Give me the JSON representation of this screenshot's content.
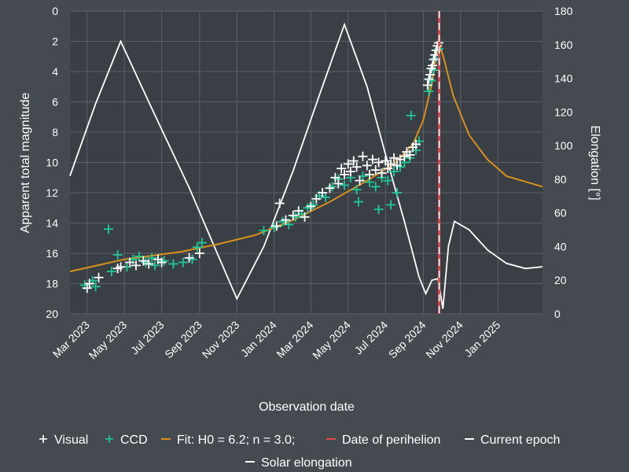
{
  "colors": {
    "background": "#454a50",
    "plot_background": "#3a3f45",
    "grid": "#5a6068",
    "visual": "#ffffff",
    "ccd": "#1fc997",
    "fit": "#d8901c",
    "perihelion": "#e0474c",
    "current_epoch": "#ffffff",
    "elongation": "#ffffff"
  },
  "chart_data": {
    "type": "scatter",
    "xlabel": "Observation date",
    "ylabel_left": "Apparent total magnitude",
    "ylabel_right": "Elongation [°]",
    "ylim_left": [
      20,
      0
    ],
    "ylim_right": [
      0,
      180
    ],
    "xlim": [
      "2023-02-01",
      "2025-03-15"
    ],
    "x_ticks": [
      {
        "date": "2023-03-01",
        "label": "Mar 2023"
      },
      {
        "date": "2023-05-01",
        "label": "May 2023"
      },
      {
        "date": "2023-07-01",
        "label": "Jul 2023"
      },
      {
        "date": "2023-09-01",
        "label": "Sep 2023"
      },
      {
        "date": "2023-11-01",
        "label": "Nov 2023"
      },
      {
        "date": "2024-01-01",
        "label": "Jan 2024"
      },
      {
        "date": "2024-03-01",
        "label": "Mar 2024"
      },
      {
        "date": "2024-05-01",
        "label": "May 2024"
      },
      {
        "date": "2024-07-01",
        "label": "Jul 2024"
      },
      {
        "date": "2024-09-01",
        "label": "Sep 2024"
      },
      {
        "date": "2024-11-01",
        "label": "Nov 2024"
      },
      {
        "date": "2025-01-01",
        "label": "Jan 2025"
      }
    ],
    "y_ticks_left": [
      0,
      2,
      4,
      6,
      8,
      10,
      12,
      14,
      16,
      18,
      20
    ],
    "y_ticks_right": [
      0,
      20,
      40,
      60,
      80,
      100,
      120,
      140,
      160,
      180
    ],
    "grid": true,
    "legend_position": "bottom",
    "legend": [
      {
        "label": "Visual",
        "symbol": "+",
        "color": "#ffffff"
      },
      {
        "label": "CCD",
        "symbol": "+",
        "color": "#1fc997"
      },
      {
        "label": "Fit: H0 = 6.2; n = 3.0;",
        "symbol": "line",
        "color": "#d8901c"
      },
      {
        "label": "Date of perihelion",
        "symbol": "dash",
        "color": "#e0474c"
      },
      {
        "label": "Current epoch",
        "symbol": "line",
        "color": "#ffffff"
      },
      {
        "label": "Solar elongation",
        "symbol": "line",
        "color": "#ffffff"
      }
    ],
    "perihelion_date": "2024-09-27",
    "current_epoch_date": "2024-09-27",
    "fit_curve": [
      {
        "x": "2023-02-01",
        "y": 17.2
      },
      {
        "x": "2023-05-01",
        "y": 16.4
      },
      {
        "x": "2023-08-01",
        "y": 15.9
      },
      {
        "x": "2023-10-01",
        "y": 15.4
      },
      {
        "x": "2023-12-01",
        "y": 14.8
      },
      {
        "x": "2024-02-01",
        "y": 13.8
      },
      {
        "x": "2024-04-01",
        "y": 12.6
      },
      {
        "x": "2024-06-01",
        "y": 11.2
      },
      {
        "x": "2024-07-15",
        "y": 10.1
      },
      {
        "x": "2024-08-15",
        "y": 8.8
      },
      {
        "x": "2024-09-01",
        "y": 7.2
      },
      {
        "x": "2024-09-15",
        "y": 4.8
      },
      {
        "x": "2024-09-24",
        "y": 2.5
      },
      {
        "x": "2024-09-28",
        "y": 2.2
      },
      {
        "x": "2024-10-05",
        "y": 3.2
      },
      {
        "x": "2024-10-20",
        "y": 5.6
      },
      {
        "x": "2024-11-15",
        "y": 8.2
      },
      {
        "x": "2024-12-15",
        "y": 9.8
      },
      {
        "x": "2025-01-15",
        "y": 10.9
      },
      {
        "x": "2025-03-15",
        "y": 11.6
      }
    ],
    "elongation_curve": [
      {
        "x": "2023-02-01",
        "y": 82
      },
      {
        "x": "2023-03-15",
        "y": 125
      },
      {
        "x": "2023-04-25",
        "y": 162
      },
      {
        "x": "2023-06-15",
        "y": 122
      },
      {
        "x": "2023-08-15",
        "y": 75
      },
      {
        "x": "2023-10-01",
        "y": 35
      },
      {
        "x": "2023-11-01",
        "y": 9
      },
      {
        "x": "2023-12-15",
        "y": 40
      },
      {
        "x": "2024-02-01",
        "y": 85
      },
      {
        "x": "2024-03-15",
        "y": 130
      },
      {
        "x": "2024-04-25",
        "y": 172
      },
      {
        "x": "2024-06-01",
        "y": 135
      },
      {
        "x": "2024-07-01",
        "y": 95
      },
      {
        "x": "2024-08-01",
        "y": 55
      },
      {
        "x": "2024-08-25",
        "y": 22
      },
      {
        "x": "2024-09-05",
        "y": 12
      },
      {
        "x": "2024-09-15",
        "y": 20
      },
      {
        "x": "2024-09-25",
        "y": 21
      },
      {
        "x": "2024-10-03",
        "y": 3
      },
      {
        "x": "2024-10-12",
        "y": 40
      },
      {
        "x": "2024-10-22",
        "y": 55
      },
      {
        "x": "2024-11-15",
        "y": 50
      },
      {
        "x": "2024-12-15",
        "y": 38
      },
      {
        "x": "2025-01-15",
        "y": 30
      },
      {
        "x": "2025-02-15",
        "y": 27
      },
      {
        "x": "2025-03-15",
        "y": 28
      }
    ],
    "visual_points": [
      {
        "x": "2023-03-01",
        "y": 18.3
      },
      {
        "x": "2023-03-05",
        "y": 18.0
      },
      {
        "x": "2023-03-20",
        "y": 17.6
      },
      {
        "x": "2023-04-20",
        "y": 17.0
      },
      {
        "x": "2023-04-25",
        "y": 16.9
      },
      {
        "x": "2023-05-10",
        "y": 16.6
      },
      {
        "x": "2023-05-20",
        "y": 16.8
      },
      {
        "x": "2023-06-01",
        "y": 16.5
      },
      {
        "x": "2023-06-10",
        "y": 16.7
      },
      {
        "x": "2023-06-25",
        "y": 16.4
      },
      {
        "x": "2023-07-01",
        "y": 16.6
      },
      {
        "x": "2023-08-15",
        "y": 16.3
      },
      {
        "x": "2023-09-01",
        "y": 16.0
      },
      {
        "x": "2024-01-05",
        "y": 14.2
      },
      {
        "x": "2024-01-10",
        "y": 12.7
      },
      {
        "x": "2024-01-20",
        "y": 13.8
      },
      {
        "x": "2024-02-01",
        "y": 13.5
      },
      {
        "x": "2024-02-10",
        "y": 13.2
      },
      {
        "x": "2024-02-20",
        "y": 13.6
      },
      {
        "x": "2024-03-01",
        "y": 12.9
      },
      {
        "x": "2024-03-10",
        "y": 12.4
      },
      {
        "x": "2024-03-20",
        "y": 12.0
      },
      {
        "x": "2024-04-01",
        "y": 11.7
      },
      {
        "x": "2024-04-10",
        "y": 11.0
      },
      {
        "x": "2024-04-15",
        "y": 11.4
      },
      {
        "x": "2024-04-20",
        "y": 10.4
      },
      {
        "x": "2024-04-25",
        "y": 10.8
      },
      {
        "x": "2024-05-01",
        "y": 10.1
      },
      {
        "x": "2024-05-05",
        "y": 10.6
      },
      {
        "x": "2024-05-10",
        "y": 9.9
      },
      {
        "x": "2024-05-15",
        "y": 10.3
      },
      {
        "x": "2024-05-20",
        "y": 11.2
      },
      {
        "x": "2024-05-25",
        "y": 9.6
      },
      {
        "x": "2024-06-01",
        "y": 10.2
      },
      {
        "x": "2024-06-05",
        "y": 10.8
      },
      {
        "x": "2024-06-10",
        "y": 9.8
      },
      {
        "x": "2024-06-15",
        "y": 10.5
      },
      {
        "x": "2024-06-20",
        "y": 10.0
      },
      {
        "x": "2024-06-25",
        "y": 10.7
      },
      {
        "x": "2024-07-01",
        "y": 9.9
      },
      {
        "x": "2024-07-05",
        "y": 10.4
      },
      {
        "x": "2024-07-10",
        "y": 10.1
      },
      {
        "x": "2024-07-15",
        "y": 9.7
      },
      {
        "x": "2024-07-20",
        "y": 10.2
      },
      {
        "x": "2024-07-25",
        "y": 9.8
      },
      {
        "x": "2024-08-01",
        "y": 9.6
      },
      {
        "x": "2024-08-05",
        "y": 9.3
      },
      {
        "x": "2024-08-10",
        "y": 9.5
      },
      {
        "x": "2024-08-15",
        "y": 9.0
      },
      {
        "x": "2024-08-20",
        "y": 8.8
      },
      {
        "x": "2024-09-08",
        "y": 4.9
      },
      {
        "x": "2024-09-10",
        "y": 4.5
      },
      {
        "x": "2024-09-12",
        "y": 4.2
      },
      {
        "x": "2024-09-14",
        "y": 3.8
      },
      {
        "x": "2024-09-16",
        "y": 3.6
      },
      {
        "x": "2024-09-18",
        "y": 3.2
      },
      {
        "x": "2024-09-20",
        "y": 2.9
      },
      {
        "x": "2024-09-22",
        "y": 2.6
      },
      {
        "x": "2024-09-24",
        "y": 2.3
      },
      {
        "x": "2024-09-26",
        "y": 2.1
      }
    ],
    "ccd_points": [
      {
        "x": "2023-02-25",
        "y": 18.1
      },
      {
        "x": "2023-03-10",
        "y": 17.8
      },
      {
        "x": "2023-03-15",
        "y": 18.2
      },
      {
        "x": "2023-04-05",
        "y": 14.4
      },
      {
        "x": "2023-04-10",
        "y": 17.2
      },
      {
        "x": "2023-04-20",
        "y": 16.1
      },
      {
        "x": "2023-05-05",
        "y": 16.9
      },
      {
        "x": "2023-05-15",
        "y": 16.4
      },
      {
        "x": "2023-05-25",
        "y": 16.2
      },
      {
        "x": "2023-06-05",
        "y": 16.6
      },
      {
        "x": "2023-06-15",
        "y": 16.3
      },
      {
        "x": "2023-06-20",
        "y": 16.8
      },
      {
        "x": "2023-07-05",
        "y": 16.5
      },
      {
        "x": "2023-07-20",
        "y": 16.7
      },
      {
        "x": "2023-08-05",
        "y": 16.6
      },
      {
        "x": "2023-08-20",
        "y": 16.4
      },
      {
        "x": "2023-08-28",
        "y": 15.6
      },
      {
        "x": "2023-09-05",
        "y": 15.3
      },
      {
        "x": "2023-12-15",
        "y": 14.5
      },
      {
        "x": "2024-01-01",
        "y": 14.3
      },
      {
        "x": "2024-01-15",
        "y": 13.9
      },
      {
        "x": "2024-01-25",
        "y": 14.1
      },
      {
        "x": "2024-02-05",
        "y": 13.6
      },
      {
        "x": "2024-02-15",
        "y": 13.4
      },
      {
        "x": "2024-02-25",
        "y": 13.0
      },
      {
        "x": "2024-03-05",
        "y": 12.8
      },
      {
        "x": "2024-03-15",
        "y": 12.2
      },
      {
        "x": "2024-03-25",
        "y": 12.3
      },
      {
        "x": "2024-04-05",
        "y": 11.6
      },
      {
        "x": "2024-04-15",
        "y": 11.1
      },
      {
        "x": "2024-04-25",
        "y": 11.5
      },
      {
        "x": "2024-05-05",
        "y": 11.0
      },
      {
        "x": "2024-05-15",
        "y": 11.8
      },
      {
        "x": "2024-05-18",
        "y": 12.6
      },
      {
        "x": "2024-05-25",
        "y": 10.9
      },
      {
        "x": "2024-06-05",
        "y": 11.3
      },
      {
        "x": "2024-06-15",
        "y": 11.6
      },
      {
        "x": "2024-06-20",
        "y": 13.1
      },
      {
        "x": "2024-06-25",
        "y": 11.0
      },
      {
        "x": "2024-07-05",
        "y": 11.2
      },
      {
        "x": "2024-07-10",
        "y": 12.8
      },
      {
        "x": "2024-07-15",
        "y": 10.6
      },
      {
        "x": "2024-07-20",
        "y": 12.0
      },
      {
        "x": "2024-07-25",
        "y": 10.3
      },
      {
        "x": "2024-08-01",
        "y": 10.0
      },
      {
        "x": "2024-08-10",
        "y": 9.7
      },
      {
        "x": "2024-08-12",
        "y": 6.9
      },
      {
        "x": "2024-08-20",
        "y": 9.2
      },
      {
        "x": "2024-08-25",
        "y": 8.6
      },
      {
        "x": "2024-09-10",
        "y": 5.3
      },
      {
        "x": "2024-09-14",
        "y": 4.6
      },
      {
        "x": "2024-09-18",
        "y": 3.9
      },
      {
        "x": "2024-09-22",
        "y": 3.1
      },
      {
        "x": "2024-09-26",
        "y": 2.5
      }
    ]
  }
}
